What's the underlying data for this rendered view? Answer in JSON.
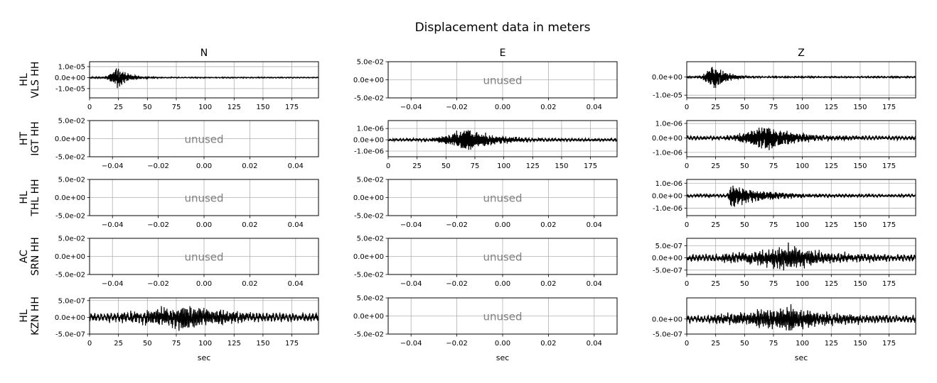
{
  "figure": {
    "title": "Displacement data in meters",
    "column_titles": [
      "N",
      "E",
      "Z"
    ],
    "xlabel": "sec",
    "unused_label": "unused"
  },
  "rows": [
    {
      "label_lines": [
        "HL",
        "VLS HH"
      ]
    },
    {
      "label_lines": [
        "HT",
        "IGT HH"
      ]
    },
    {
      "label_lines": [
        "HL",
        "THL HH"
      ]
    },
    {
      "label_lines": [
        "AC",
        "SRN HH"
      ]
    },
    {
      "label_lines": [
        "HL",
        "KZN HH"
      ]
    }
  ],
  "chart_data": [
    {
      "type": "line",
      "station": "HL VLS HH",
      "component": "N",
      "used": true,
      "xlim": [
        0,
        198
      ],
      "xticks": [
        "0",
        "25",
        "50",
        "75",
        "100",
        "125",
        "150",
        "175"
      ],
      "ylim": [
        -1.85e-05,
        1.45e-05
      ],
      "yticks": [
        {
          "v": 1e-05,
          "t": "1.0e-05"
        },
        {
          "v": 0,
          "t": "0.0e+00"
        },
        {
          "v": -1e-05,
          "t": "-1.0e-05"
        }
      ],
      "waveform": {
        "onset": 12,
        "peak": 24,
        "decay": 10,
        "amp": 1.4e-05,
        "noise": 2e-07,
        "freq": 1.6,
        "seed": 11
      }
    },
    {
      "type": "line",
      "station": "HL VLS HH",
      "component": "E",
      "used": false,
      "xlim": [
        -0.05,
        0.05
      ],
      "xticks": [
        "−0.04",
        "−0.02",
        "0.00",
        "0.02",
        "0.04"
      ],
      "ylim": [
        -0.05,
        0.05
      ],
      "yticks": [
        {
          "v": 0.05,
          "t": "5.0e-02"
        },
        {
          "v": 0,
          "t": "0.0e+00"
        },
        {
          "v": -0.05,
          "t": "-5.0e-02"
        }
      ]
    },
    {
      "type": "line",
      "station": "HL VLS HH",
      "component": "Z",
      "used": true,
      "xlim": [
        0,
        198
      ],
      "xticks": [
        "0",
        "25",
        "50",
        "75",
        "100",
        "125",
        "150",
        "175"
      ],
      "ylim": [
        -1.15e-05,
        8.5e-06
      ],
      "yticks": [
        {
          "v": 0,
          "t": "0.0e+00"
        },
        {
          "v": -1e-05,
          "t": "-1.0e-05"
        }
      ],
      "waveform": {
        "onset": 10,
        "peak": 24,
        "decay": 10,
        "amp": 1.05e-05,
        "noise": 2e-07,
        "freq": 1.5,
        "seed": 23
      }
    },
    {
      "type": "line",
      "station": "HT IGT HH",
      "component": "N",
      "used": false,
      "xlim": [
        -0.05,
        0.05
      ],
      "xticks": [
        "−0.04",
        "−0.02",
        "0.00",
        "0.02",
        "0.04"
      ],
      "ylim": [
        -0.05,
        0.05
      ],
      "yticks": [
        {
          "v": 0.05,
          "t": "5.0e-02"
        },
        {
          "v": 0,
          "t": "0.0e+00"
        },
        {
          "v": -0.05,
          "t": "-5.0e-02"
        }
      ]
    },
    {
      "type": "line",
      "station": "HT IGT HH",
      "component": "E",
      "used": true,
      "xlim": [
        0,
        198
      ],
      "xticks": [
        "0",
        "25",
        "50",
        "75",
        "100",
        "125",
        "150",
        "175"
      ],
      "ylim": [
        -1.5e-06,
        1.7e-06
      ],
      "yticks": [
        {
          "v": 1e-06,
          "t": "1.0e-06"
        },
        {
          "v": 0,
          "t": "0.0e+00"
        },
        {
          "v": -1e-06,
          "t": "-1.0e-06"
        }
      ],
      "waveform": {
        "onset": 33,
        "peak": 68,
        "decay": 25,
        "amp": 1.5e-06,
        "noise": 7e-08,
        "freq": 1.2,
        "seed": 37
      }
    },
    {
      "type": "line",
      "station": "HT IGT HH",
      "component": "Z",
      "used": true,
      "xlim": [
        0,
        198
      ],
      "xticks": [
        "0",
        "25",
        "50",
        "75",
        "100",
        "125",
        "150",
        "175"
      ],
      "ylim": [
        -1.3e-06,
        1.2e-06
      ],
      "yticks": [
        {
          "v": 1e-06,
          "t": "1.0e-06"
        },
        {
          "v": 0,
          "t": "0.0e+00"
        },
        {
          "v": -1e-06,
          "t": "-1.0e-06"
        }
      ],
      "waveform": {
        "onset": 30,
        "peak": 68,
        "decay": 28,
        "amp": 1.2e-06,
        "noise": 8e-08,
        "freq": 1.2,
        "seed": 41
      }
    },
    {
      "type": "line",
      "station": "HL THL HH",
      "component": "N",
      "used": false,
      "xlim": [
        -0.05,
        0.05
      ],
      "xticks": [
        "−0.04",
        "−0.02",
        "0.00",
        "0.02",
        "0.04"
      ],
      "ylim": [
        -0.05,
        0.05
      ],
      "yticks": [
        {
          "v": 0.05,
          "t": "5.0e-02"
        },
        {
          "v": 0,
          "t": "0.0e+00"
        },
        {
          "v": -0.05,
          "t": "-5.0e-02"
        }
      ]
    },
    {
      "type": "line",
      "station": "HL THL HH",
      "component": "E",
      "used": false,
      "xlim": [
        -0.05,
        0.05
      ],
      "xticks": [
        "−0.04",
        "−0.02",
        "0.00",
        "0.02",
        "0.04"
      ],
      "ylim": [
        -0.05,
        0.05
      ],
      "yticks": [
        {
          "v": 0.05,
          "t": "5.0e-02"
        },
        {
          "v": 0,
          "t": "0.0e+00"
        },
        {
          "v": -0.05,
          "t": "-5.0e-02"
        }
      ]
    },
    {
      "type": "line",
      "station": "HL THL HH",
      "component": "Z",
      "used": true,
      "xlim": [
        0,
        198
      ],
      "xticks": [
        "0",
        "25",
        "50",
        "75",
        "100",
        "125",
        "150",
        "175"
      ],
      "ylim": [
        -1.6e-06,
        1.3e-06
      ],
      "yticks": [
        {
          "v": 1e-06,
          "t": "1.0e-06"
        },
        {
          "v": 0,
          "t": "0.0e+00"
        },
        {
          "v": -1e-06,
          "t": "-1.0e-06"
        }
      ],
      "waveform": {
        "onset": 34,
        "peak": 38,
        "decay": 30,
        "amp": 1.3e-06,
        "noise": 7e-08,
        "freq": 1.1,
        "seed": 53
      }
    },
    {
      "type": "line",
      "station": "AC SRN HH",
      "component": "N",
      "used": false,
      "xlim": [
        -0.05,
        0.05
      ],
      "xticks": [
        "−0.04",
        "−0.02",
        "0.00",
        "0.02",
        "0.04"
      ],
      "ylim": [
        -0.05,
        0.05
      ],
      "yticks": [
        {
          "v": 0.05,
          "t": "5.0e-02"
        },
        {
          "v": 0,
          "t": "0.0e+00"
        },
        {
          "v": -0.05,
          "t": "-5.0e-02"
        }
      ]
    },
    {
      "type": "line",
      "station": "AC SRN HH",
      "component": "E",
      "used": false,
      "xlim": [
        -0.05,
        0.05
      ],
      "xticks": [
        "−0.04",
        "−0.02",
        "0.00",
        "0.02",
        "0.04"
      ],
      "ylim": [
        -0.05,
        0.05
      ],
      "yticks": [
        {
          "v": 0.05,
          "t": "5.0e-02"
        },
        {
          "v": 0,
          "t": "0.0e+00"
        },
        {
          "v": -0.05,
          "t": "-5.0e-02"
        }
      ]
    },
    {
      "type": "line",
      "station": "AC SRN HH",
      "component": "Z",
      "used": true,
      "xlim": [
        0,
        198
      ],
      "xticks": [
        "0",
        "25",
        "50",
        "75",
        "100",
        "125",
        "150",
        "175"
      ],
      "ylim": [
        -6.8e-07,
        8e-07
      ],
      "yticks": [
        {
          "v": 5e-07,
          "t": "5.0e-07"
        },
        {
          "v": 0,
          "t": "0.0e+00"
        },
        {
          "v": -5e-07,
          "t": "-5.0e-07"
        }
      ],
      "waveform": {
        "onset": 5,
        "peak": 88,
        "decay": 38,
        "amp": 6.5e-07,
        "noise": 8e-08,
        "freq": 0.9,
        "seed": 67
      }
    },
    {
      "type": "line",
      "station": "HL KZN HH",
      "component": "N",
      "used": true,
      "xlim": [
        0,
        198
      ],
      "xticks": [
        "0",
        "25",
        "50",
        "75",
        "100",
        "125",
        "150",
        "175"
      ],
      "ylim": [
        -5e-07,
        5.8e-07
      ],
      "yticks": [
        {
          "v": 5e-07,
          "t": "5.0e-07"
        },
        {
          "v": 0,
          "t": "0.0e+00"
        },
        {
          "v": -5e-07,
          "t": "-5.0e-07"
        }
      ],
      "waveform": {
        "onset": 0,
        "peak": 82,
        "decay": 40,
        "amp": 5e-07,
        "noise": 7e-08,
        "freq": 0.9,
        "seed": 71
      }
    },
    {
      "type": "line",
      "station": "HL KZN HH",
      "component": "E",
      "used": false,
      "xlim": [
        -0.05,
        0.05
      ],
      "xticks": [
        "−0.04",
        "−0.02",
        "0.00",
        "0.02",
        "0.04"
      ],
      "ylim": [
        -0.05,
        0.05
      ],
      "yticks": [
        {
          "v": 0.05,
          "t": "5.0e-02"
        },
        {
          "v": 0,
          "t": "0.0e+00"
        },
        {
          "v": -0.05,
          "t": "-5.0e-02"
        }
      ]
    },
    {
      "type": "line",
      "station": "HL KZN HH",
      "component": "Z",
      "used": true,
      "xlim": [
        0,
        198
      ],
      "xticks": [
        "0",
        "25",
        "50",
        "75",
        "100",
        "125",
        "150",
        "175"
      ],
      "ylim": [
        -5e-07,
        7e-07
      ],
      "yticks": [
        {
          "v": 0,
          "t": "0.0e+00"
        },
        {
          "v": -5e-07,
          "t": "-5.0e-07"
        }
      ],
      "waveform": {
        "onset": 0,
        "peak": 90,
        "decay": 38,
        "amp": 5.5e-07,
        "noise": 7e-08,
        "freq": 0.9,
        "seed": 83
      }
    }
  ]
}
